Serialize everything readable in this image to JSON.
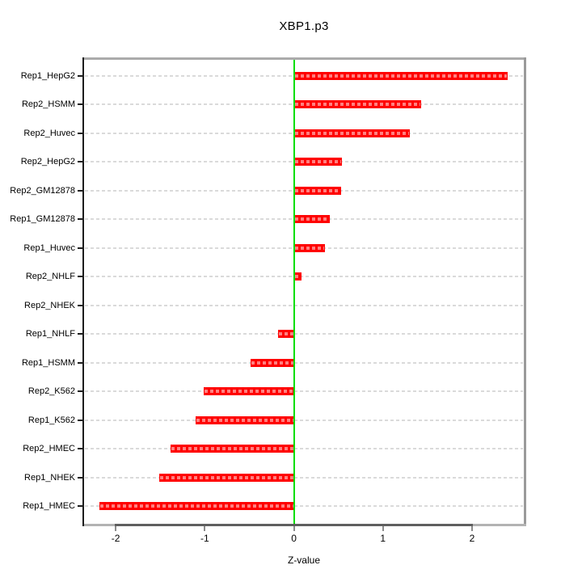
{
  "chart_data": {
    "type": "bar",
    "orientation": "horizontal",
    "title": "XBP1.p3",
    "xlabel": "Z-value",
    "categories": [
      "Rep1_HepG2",
      "Rep2_HSMM",
      "Rep2_Huvec",
      "Rep2_HepG2",
      "Rep2_GM12878",
      "Rep1_GM12878",
      "Rep1_Huvec",
      "Rep2_NHLF",
      "Rep2_NHEK",
      "Rep1_NHLF",
      "Rep1_HSMM",
      "Rep2_K562",
      "Rep1_K562",
      "Rep2_HMEC",
      "Rep1_NHEK",
      "Rep1_HMEC"
    ],
    "values": [
      2.4,
      1.43,
      1.3,
      0.54,
      0.53,
      0.4,
      0.35,
      0.09,
      0.0,
      -0.18,
      -0.49,
      -1.01,
      -1.1,
      -1.38,
      -1.51,
      -2.18
    ],
    "xticks": [
      -2,
      -1,
      0,
      1,
      2
    ],
    "xtick_labels": [
      "-2",
      "-1",
      "0",
      "1",
      "2"
    ],
    "xlim": [
      -2.355,
      2.581
    ],
    "grid": true,
    "legend": "none",
    "bar_color": "#ff0000",
    "bar_dash_color": "#ff7f7f",
    "zero_line_color": "#00de00",
    "gridline_color": "#dadada"
  }
}
